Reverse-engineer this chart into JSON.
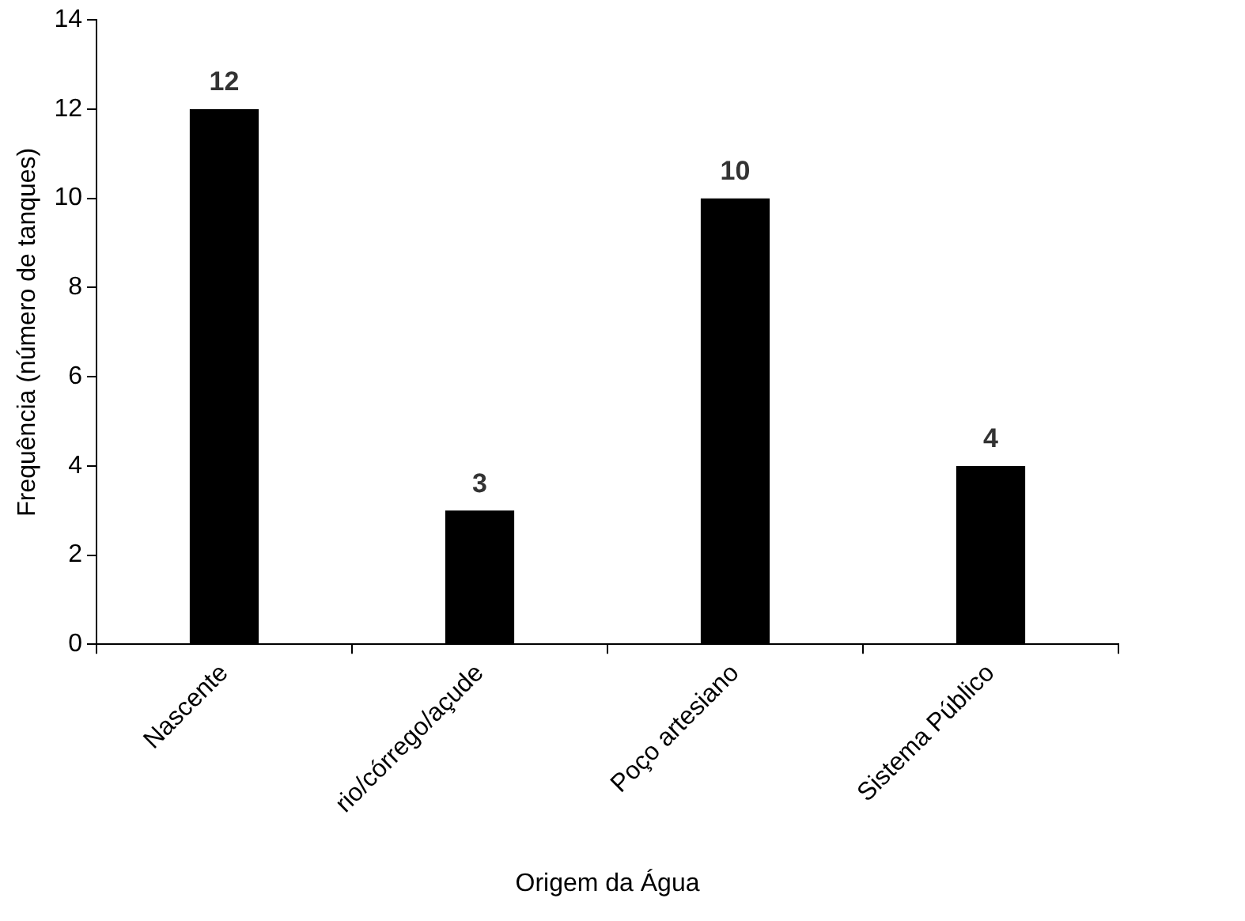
{
  "chart_data": {
    "type": "bar",
    "xlabel": "Origem da Água",
    "ylabel": "Frequência (número de tanques)",
    "categories": [
      "Nascente",
      "rio/córrego/açude",
      "Poço artesiano",
      "Sistema Público"
    ],
    "values": [
      12,
      3,
      10,
      4
    ],
    "color": "#000000",
    "ylim": [
      0,
      14
    ],
    "yticks": [
      0,
      2,
      4,
      6,
      8,
      10,
      12,
      14
    ],
    "grid": false,
    "legend": false,
    "data_labels": true
  }
}
